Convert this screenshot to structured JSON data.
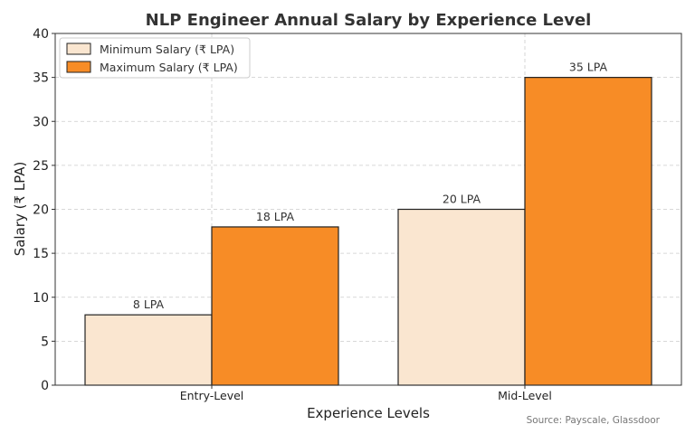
{
  "chart_data": {
    "type": "bar",
    "title": "NLP Engineer Annual Salary by Experience Level",
    "xlabel": "Experience Levels",
    "ylabel": "Salary (₹ LPA)",
    "categories": [
      "Entry-Level",
      "Mid-Level"
    ],
    "series": [
      {
        "name": "Minimum Salary (₹ LPA)",
        "values": [
          8,
          20
        ],
        "labels": [
          "8 LPA",
          "20 LPA"
        ],
        "color": "#fae6d0"
      },
      {
        "name": "Maximum Salary (₹ LPA)",
        "values": [
          18,
          35
        ],
        "labels": [
          "18 LPA",
          "35 LPA"
        ],
        "color": "#f78c26"
      }
    ],
    "ylim": [
      0,
      40
    ],
    "yticks": [
      "0",
      "5",
      "10",
      "15",
      "20",
      "25",
      "30",
      "35",
      "40"
    ],
    "grid": true,
    "legend_position": "top-left",
    "source": "Source: Payscale, Glassdoor"
  }
}
